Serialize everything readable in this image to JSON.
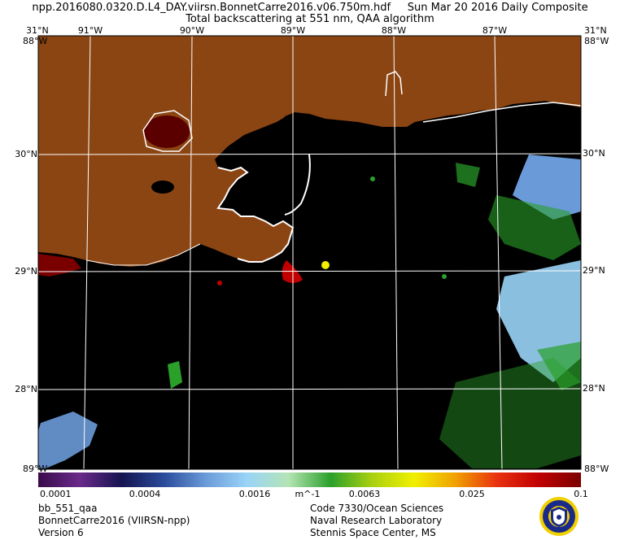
{
  "header": {
    "line1": "npp.2016080.0320.D.L4_DAY.viirsn.BonnetCarre2016.v06.750m.hdf     Sun Mar 20 2016 Daily Composite",
    "line2": "Total backscattering at 551 nm, QAA algorithm"
  },
  "graticule": {
    "lon_labels": [
      "91°W",
      "90°W",
      "89°W",
      "88°W",
      "87°W"
    ],
    "lat_labels": [
      "30°N",
      "29°N",
      "28°N"
    ],
    "corner_top_left": "31°N",
    "corner_top_right": "31°N",
    "corner_left_top": "88°W",
    "corner_right_top": "88°W",
    "corner_left_bottom": "89°W",
    "corner_right_bottom": "88°W"
  },
  "colorbar": {
    "ticks": [
      "0.0001",
      "0.0004",
      "0.0016",
      "0.0063",
      "0.025",
      "0.1"
    ],
    "unit": "m^-1",
    "colors": [
      "#3a0a4a",
      "#6a2a8a",
      "#141450",
      "#2a4a9a",
      "#6a9ad8",
      "#9ad4f8",
      "#b4e4b4",
      "#2aa02a",
      "#aad010",
      "#f0f000",
      "#f0a000",
      "#e83010",
      "#c00000",
      "#7a0000"
    ]
  },
  "map_colors": {
    "land": "#8b4513",
    "water": "#000000",
    "grid": "#ffffff"
  },
  "footer": {
    "product": "bb_551_qaa",
    "region": "BonnetCarre2016 (VIIRSN-npp)",
    "version": "Version 6",
    "org1": "Code 7330/Ocean Sciences",
    "org2": "Naval Research Laboratory",
    "org3": "Stennis Space Center, MS"
  }
}
